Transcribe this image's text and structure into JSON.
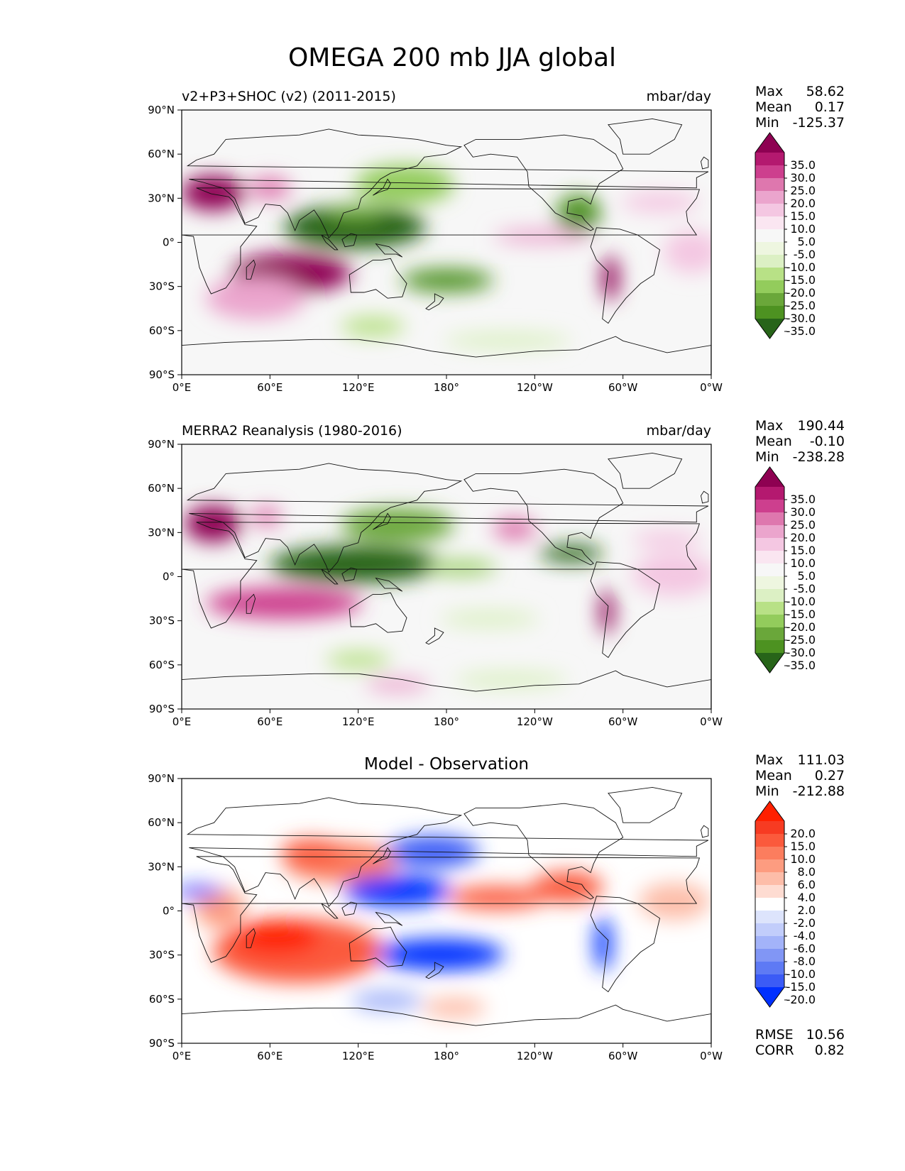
{
  "figure_title": "OMEGA 200 mb JJA global",
  "chart_data": [
    {
      "type": "heatmap",
      "title_left": "v2+P3+SHOC (v2) (2011-2015)",
      "title_right": "mbar/day",
      "x_ticks": [
        "0°E",
        "60°E",
        "120°E",
        "180°",
        "120°W",
        "60°W",
        "0°W"
      ],
      "y_ticks": [
        "90°N",
        "60°N",
        "30°N",
        "0°",
        "30°S",
        "60°S",
        "90°S"
      ],
      "xlim": [
        0,
        360
      ],
      "ylim": [
        -90,
        90
      ],
      "stats": [
        {
          "label": "Max",
          "value": "58.62"
        },
        {
          "label": "Mean",
          "value": "0.17"
        },
        {
          "label": "Min",
          "value": "-125.37"
        }
      ],
      "colorbar": {
        "labels": [
          "35.0",
          "30.0",
          "25.0",
          "20.0",
          "15.0",
          "10.0",
          "5.0",
          "-5.0",
          "-10.0",
          "-15.0",
          "-20.0",
          "-25.0",
          "-30.0",
          "-35.0"
        ],
        "colors": [
          "#8e0152",
          "#b4196f",
          "#cd3f8e",
          "#de77ae",
          "#eba5cd",
          "#f4c7e2",
          "#fae6f1",
          "#f7f7f7",
          "#eef6e0",
          "#dcf0c4",
          "#b8e186",
          "#93cc5c",
          "#6aa73a",
          "#4d9221",
          "#276419"
        ]
      }
    },
    {
      "type": "heatmap",
      "title_left": "MERRA2 Reanalysis (1980-2016)",
      "title_right": "mbar/day",
      "x_ticks": [
        "0°E",
        "60°E",
        "120°E",
        "180°",
        "120°W",
        "60°W",
        "0°W"
      ],
      "y_ticks": [
        "90°N",
        "60°N",
        "30°N",
        "0°",
        "30°S",
        "60°S",
        "90°S"
      ],
      "xlim": [
        0,
        360
      ],
      "ylim": [
        -90,
        90
      ],
      "stats": [
        {
          "label": "Max",
          "value": "190.44"
        },
        {
          "label": "Mean",
          "value": "-0.10"
        },
        {
          "label": "Min",
          "value": "-238.28"
        }
      ],
      "colorbar": {
        "labels": [
          "35.0",
          "30.0",
          "25.0",
          "20.0",
          "15.0",
          "10.0",
          "5.0",
          "-5.0",
          "-10.0",
          "-15.0",
          "-20.0",
          "-25.0",
          "-30.0",
          "-35.0"
        ],
        "colors": [
          "#8e0152",
          "#b4196f",
          "#cd3f8e",
          "#de77ae",
          "#eba5cd",
          "#f4c7e2",
          "#fae6f1",
          "#f7f7f7",
          "#eef6e0",
          "#dcf0c4",
          "#b8e186",
          "#93cc5c",
          "#6aa73a",
          "#4d9221",
          "#276419"
        ]
      }
    },
    {
      "type": "heatmap",
      "title_center": "Model - Observation",
      "x_ticks": [
        "0°E",
        "60°E",
        "120°E",
        "180°",
        "120°W",
        "60°W",
        "0°W"
      ],
      "y_ticks": [
        "90°N",
        "60°N",
        "30°N",
        "0°",
        "30°S",
        "60°S",
        "90°S"
      ],
      "xlim": [
        0,
        360
      ],
      "ylim": [
        -90,
        90
      ],
      "stats": [
        {
          "label": "Max",
          "value": "111.03"
        },
        {
          "label": "Mean",
          "value": "0.27"
        },
        {
          "label": "Min",
          "value": "-212.88"
        }
      ],
      "extra_stats": [
        {
          "label": "RMSE",
          "value": "10.56"
        },
        {
          "label": "CORR",
          "value": "0.82"
        }
      ],
      "colorbar": {
        "labels": [
          "20.0",
          "15.0",
          "10.0",
          "8.0",
          "6.0",
          "4.0",
          "2.0",
          "-2.0",
          "-4.0",
          "-6.0",
          "-8.0",
          "-10.0",
          "-15.0",
          "-20.0"
        ],
        "colors": [
          "#ff2000",
          "#f73b22",
          "#fb5a3c",
          "#fc7d5e",
          "#fd9c80",
          "#fdbda9",
          "#fedcd2",
          "#ffffff",
          "#dde4fc",
          "#c2cdfb",
          "#a3b3f9",
          "#8196f5",
          "#5e7af4",
          "#3b5bf6",
          "#0030ff"
        ]
      }
    }
  ]
}
